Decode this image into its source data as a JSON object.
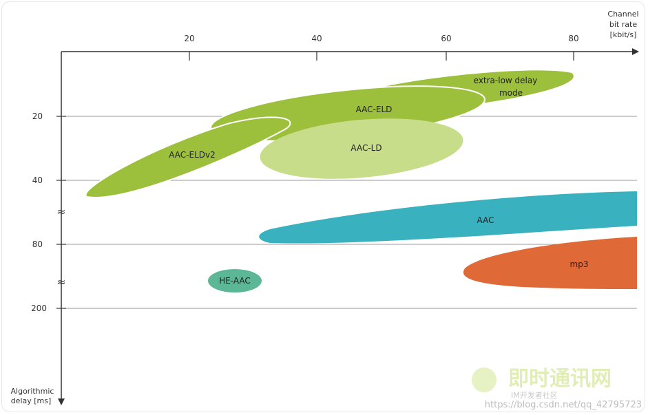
{
  "diagram": {
    "x_axis": {
      "title_lines": [
        "Channel",
        "bit rate",
        "[kbit/s]"
      ],
      "ticks": [
        "20",
        "40",
        "60",
        "80"
      ]
    },
    "y_axis": {
      "title_lines": [
        "Algorithmic",
        "delay [ms]"
      ],
      "ticks": [
        "20",
        "40",
        "80",
        "200"
      ],
      "break_symbol": "≈"
    },
    "regions": [
      {
        "id": "eld-low-delay",
        "label_lines": [
          "extra-low delay",
          "mode"
        ],
        "color": "#9cbf3c"
      },
      {
        "id": "aac-eld",
        "label_lines": [
          "AAC-ELD"
        ],
        "color": "#9cbf3c"
      },
      {
        "id": "aac-eldv2",
        "label_lines": [
          "AAC-ELDv2"
        ],
        "color": "#9cbf3c"
      },
      {
        "id": "aac-ld",
        "label_lines": [
          "AAC-LD"
        ],
        "color": "#c8dd8a"
      },
      {
        "id": "aac",
        "label_lines": [
          "AAC"
        ],
        "color": "#39b1bf"
      },
      {
        "id": "mp3",
        "label_lines": [
          "mp3"
        ],
        "color": "#e06a37"
      },
      {
        "id": "he-aac",
        "label_lines": [
          "HE-AAC"
        ],
        "color": "#5bb795"
      }
    ],
    "colors": {
      "axis": "#333333",
      "gridline": "#999999",
      "background": "#ffffff"
    }
  },
  "watermark": {
    "logo_text": "即时通讯网",
    "sub_text": "IM开发者社区",
    "url_text": "https://blog.csdn.net/qq_42795723"
  }
}
